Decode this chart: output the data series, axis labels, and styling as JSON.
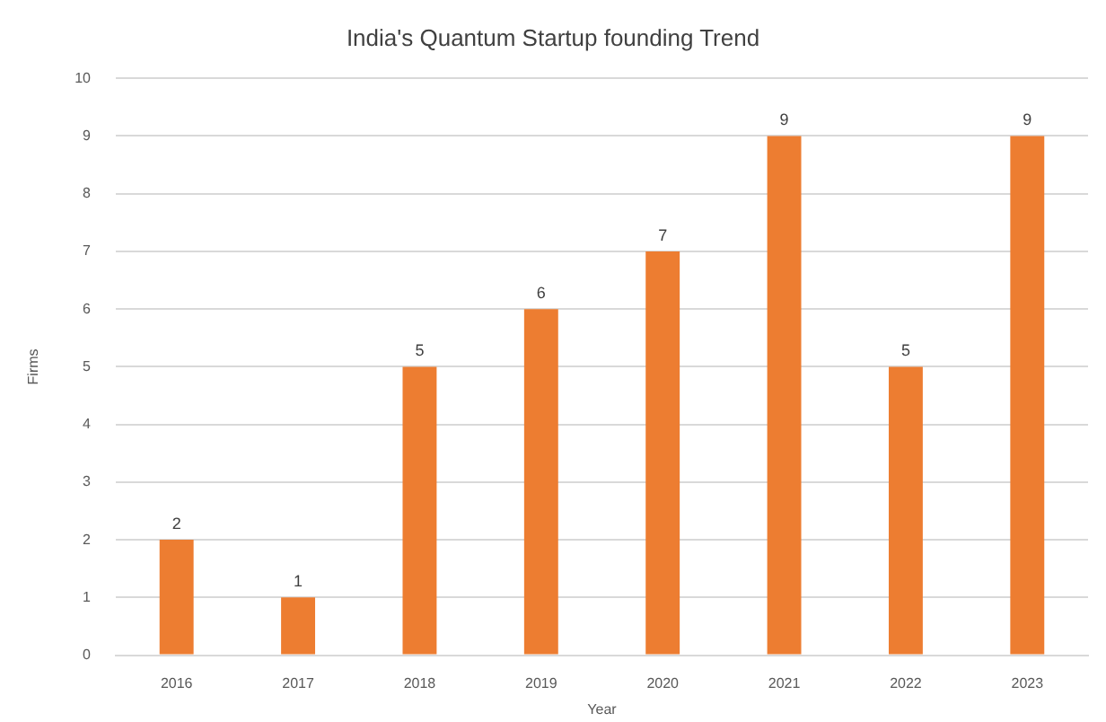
{
  "chart_data": {
    "type": "bar",
    "title": "India's Quantum Startup founding Trend",
    "xlabel": "Year",
    "ylabel": "Firms",
    "categories": [
      "2016",
      "2017",
      "2018",
      "2019",
      "2020",
      "2021",
      "2022",
      "2023"
    ],
    "values": [
      2,
      1,
      5,
      6,
      7,
      9,
      5,
      9
    ],
    "color": "#ed7d31",
    "ylim": [
      0,
      10
    ],
    "yticks": [
      0,
      1,
      2,
      3,
      4,
      5,
      6,
      7,
      8,
      9,
      10
    ],
    "grid": "y",
    "data_labels": true
  }
}
